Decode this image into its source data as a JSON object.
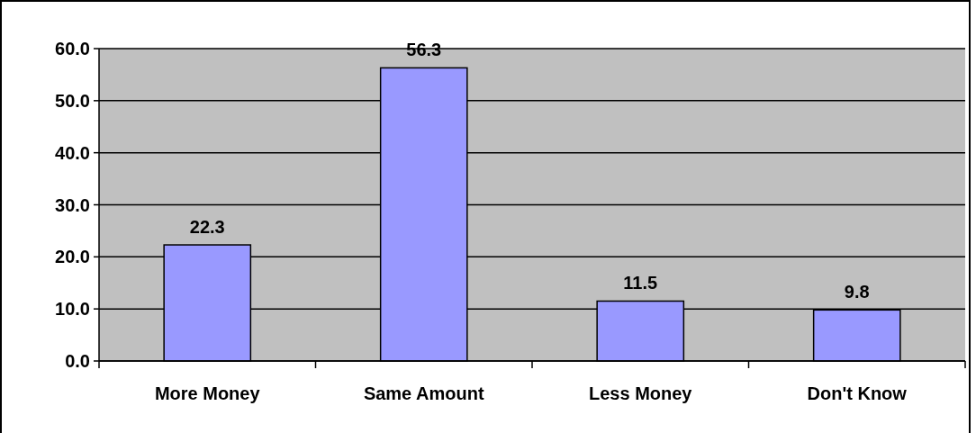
{
  "chart_data": {
    "type": "bar",
    "categories": [
      "More Money",
      "Same Amount",
      "Less Money",
      "Don't Know"
    ],
    "values": [
      22.3,
      56.3,
      11.5,
      9.8
    ],
    "color": "#9999ff",
    "ylim": [
      0,
      60
    ],
    "yticks": [
      {
        "value": 0,
        "label": "0.0"
      },
      {
        "value": 10,
        "label": "10.0"
      },
      {
        "value": 20,
        "label": "20.0"
      },
      {
        "value": 30,
        "label": "30.0"
      },
      {
        "value": 40,
        "label": "40.0"
      },
      {
        "value": 50,
        "label": "50.0"
      },
      {
        "value": 60,
        "label": "60.0"
      }
    ],
    "grid": "y",
    "data_labels": true
  }
}
